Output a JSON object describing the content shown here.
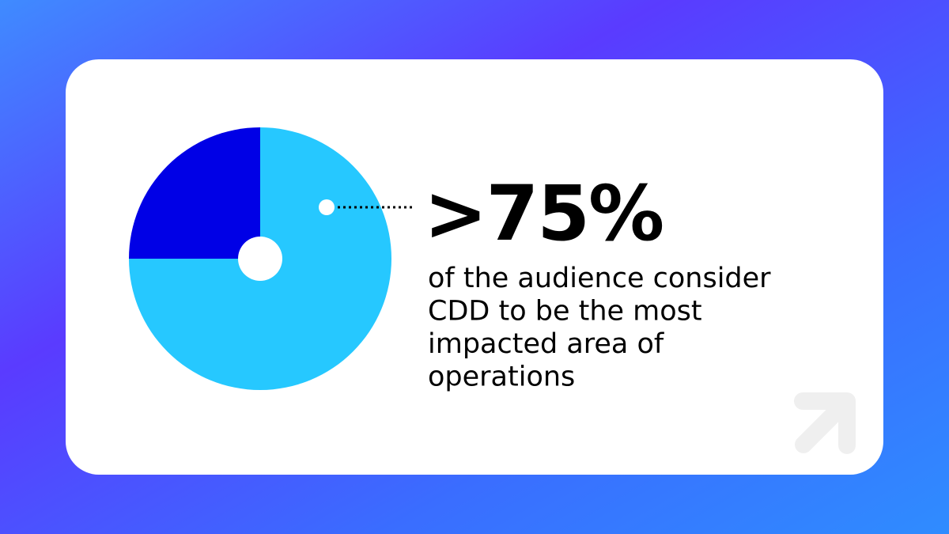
{
  "chart_data": {
    "type": "pie",
    "values": [
      75,
      25
    ],
    "value_labels": [
      ">75%",
      null
    ],
    "colors": [
      "#26c8ff",
      "#0000e6"
    ],
    "start_angle": "top",
    "direction": "clockwise",
    "annotation_lines": [
      "of the audience consider",
      "CDD to be the most",
      "impacted area of",
      "operations"
    ]
  }
}
